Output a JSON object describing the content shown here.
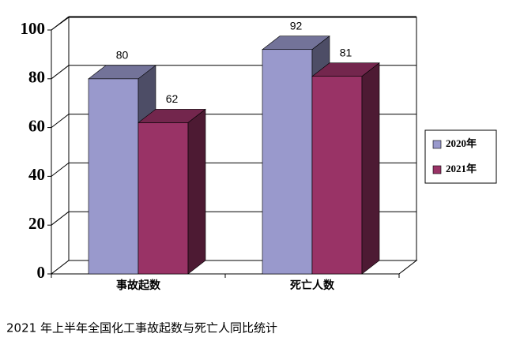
{
  "chart_data": {
    "type": "bar3d",
    "title": "2021 年上半年全国化工事故起数与死亡人同比统计",
    "categories": [
      "事故起数",
      "死亡人数"
    ],
    "series": [
      {
        "name": "2020年",
        "color": "#9999cc",
        "values": [
          80,
          92
        ]
      },
      {
        "name": "2021年",
        "color": "#993366",
        "values": [
          62,
          81
        ]
      }
    ],
    "ylim": [
      0,
      100
    ],
    "yticks": [
      0,
      20,
      40,
      60,
      80,
      100
    ],
    "grid": true,
    "legend": "right"
  }
}
